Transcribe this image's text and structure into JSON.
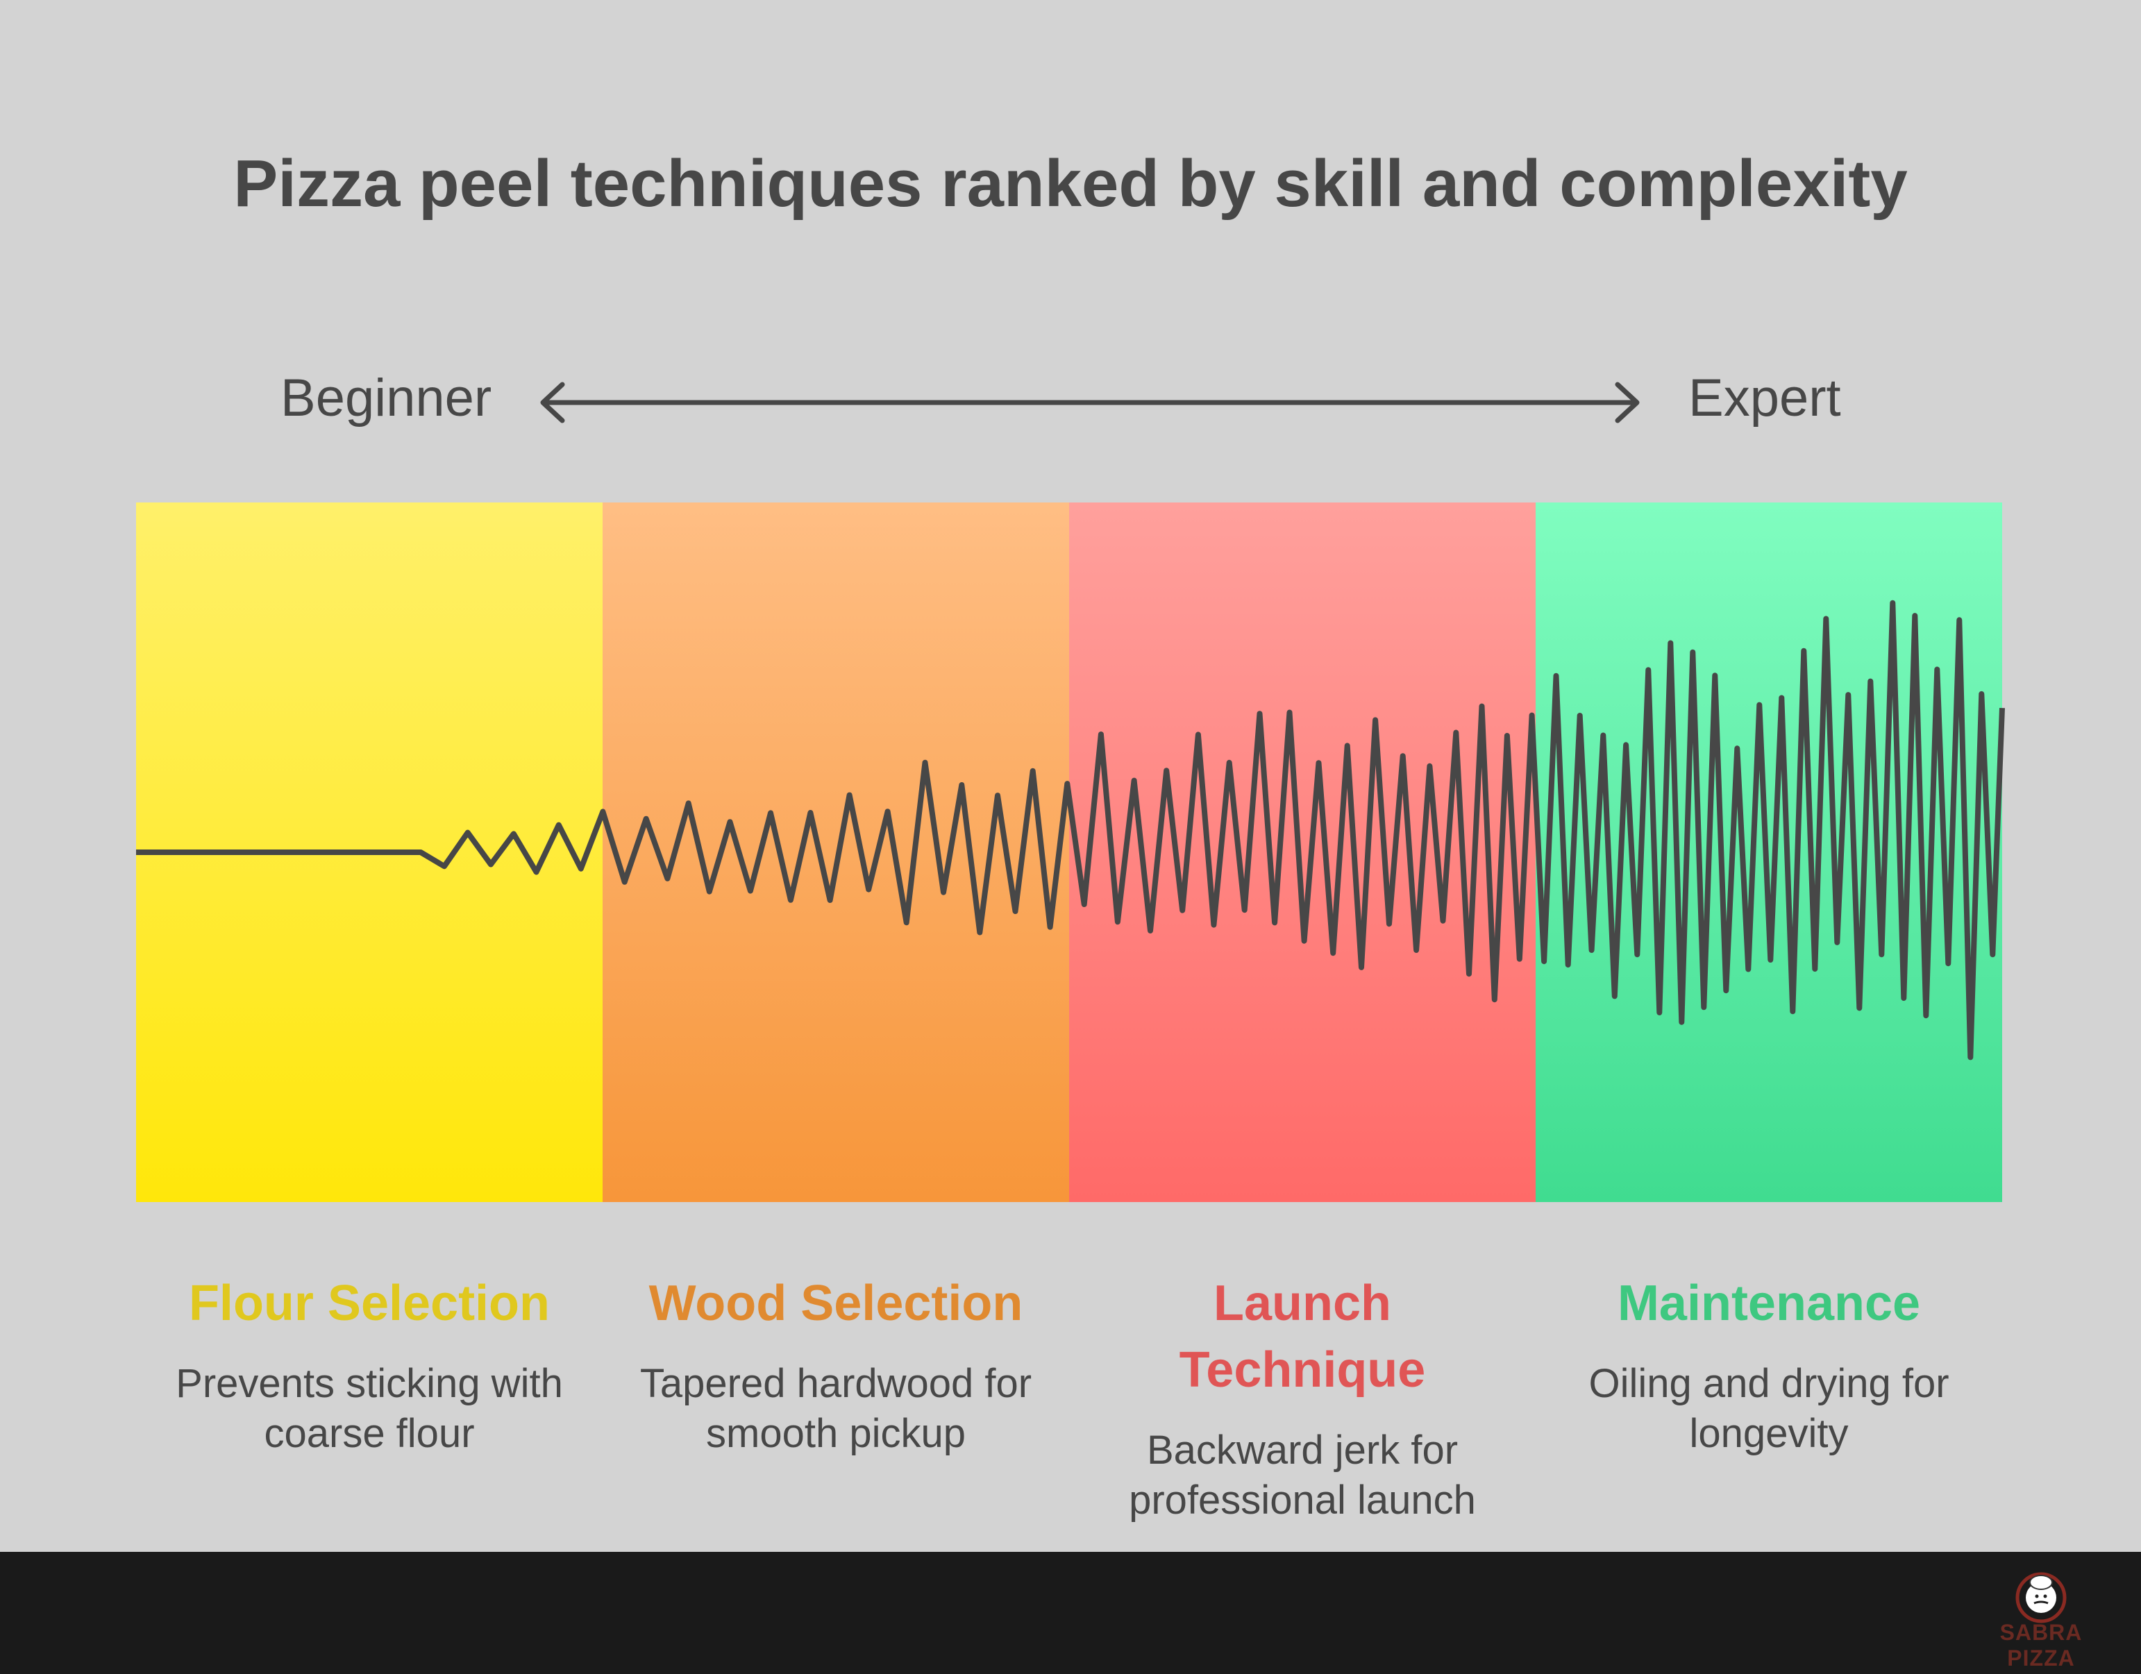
{
  "title": "Pizza peel techniques ranked by skill and complexity",
  "scale": {
    "start": "Beginner",
    "end": "Expert"
  },
  "stages": [
    {
      "heading": "Flour Selection",
      "description": "Prevents sticking with coarse flour",
      "color": "#e0c81e"
    },
    {
      "heading": "Wood Selection",
      "description": "Tapered hardwood for smooth pickup",
      "color": "#e08a30"
    },
    {
      "heading": "Launch Technique",
      "description": "Backward jerk for professional launch",
      "color": "#e05555"
    },
    {
      "heading": "Maintenance",
      "description": "Oiling and drying for longevity",
      "color": "#3ec880"
    }
  ],
  "brand": {
    "name": "SABRA PIZZA",
    "icon": "chef-logo-icon"
  }
}
